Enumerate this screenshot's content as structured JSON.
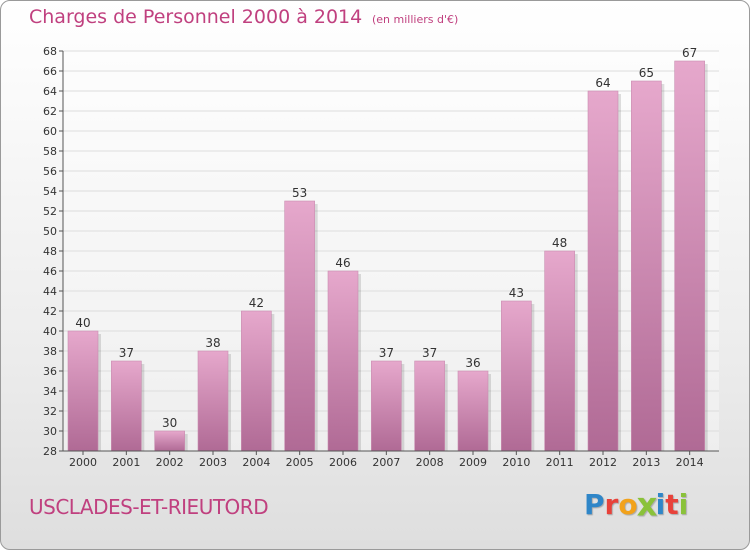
{
  "title": "Charges de Personnel 2000 à 2014",
  "unit_note": "(en milliers d'€)",
  "commune": "USCLADES-ET-RIEUTORD",
  "logo": {
    "text": "Proxiti",
    "letters": [
      {
        "char": "P",
        "color": "#2f86c8"
      },
      {
        "char": "r",
        "color": "#e8423a"
      },
      {
        "char": "o",
        "color": "#f2a21b"
      },
      {
        "char": "x",
        "color": "#8ac23a"
      },
      {
        "char": "i",
        "color": "#2f86c8"
      },
      {
        "char": "t",
        "color": "#e8423a"
      },
      {
        "char": "i",
        "color": "#8ac23a"
      }
    ]
  },
  "colors": {
    "title": "#c0407f",
    "bar_light": "#e6a8cc",
    "bar_dark": "#b06a95",
    "grid": "#dddddd",
    "axis": "#555555"
  },
  "chart_data": {
    "type": "bar",
    "categories": [
      "2000",
      "2001",
      "2002",
      "2003",
      "2004",
      "2005",
      "2006",
      "2007",
      "2008",
      "2009",
      "2010",
      "2011",
      "2012",
      "2013",
      "2014"
    ],
    "values": [
      40,
      37,
      30,
      38,
      42,
      53,
      46,
      37,
      37,
      36,
      43,
      48,
      64,
      65,
      67
    ],
    "ylim": [
      28,
      68
    ],
    "yticks": [
      28,
      30,
      32,
      34,
      36,
      38,
      40,
      42,
      44,
      46,
      48,
      50,
      52,
      54,
      56,
      58,
      60,
      62,
      64,
      66,
      68
    ],
    "grid": true,
    "legend": "none"
  }
}
